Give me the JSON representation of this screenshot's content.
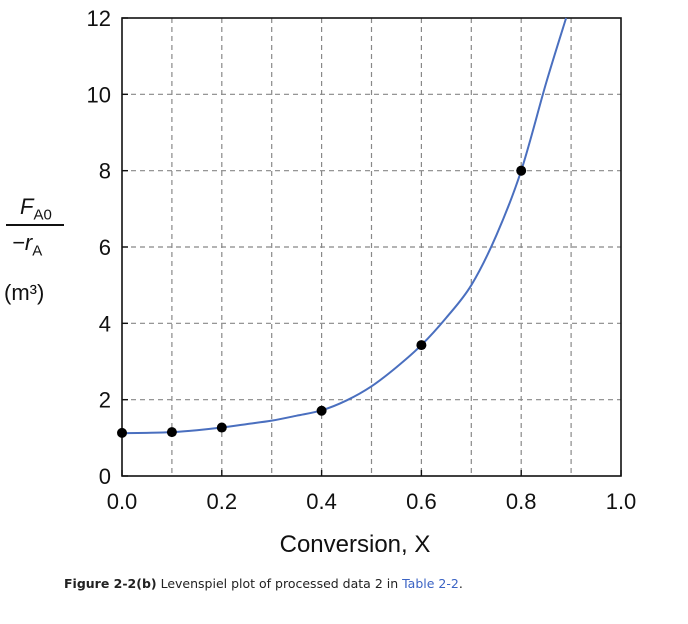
{
  "chart_data": {
    "type": "line",
    "xlabel": "Conversion, X",
    "ylabel": {
      "numerator": "F",
      "numerator_sub": "A0",
      "denominator": "−r",
      "denominator_sub": "A",
      "unit": "(m³)"
    },
    "xlim": [
      0,
      1.0
    ],
    "ylim": [
      0,
      12
    ],
    "x_ticks": [
      "0.0",
      "0.2",
      "0.4",
      "0.6",
      "0.8",
      "1.0"
    ],
    "y_ticks": [
      "0",
      "2",
      "4",
      "6",
      "8",
      "10",
      "12"
    ],
    "grid": true,
    "grid_style": "dashed",
    "points": {
      "x": [
        0.0,
        0.1,
        0.2,
        0.4,
        0.6,
        0.8
      ],
      "y": [
        1.13,
        1.15,
        1.27,
        1.71,
        3.43,
        8.0
      ]
    },
    "curve": {
      "x": [
        0.0,
        0.05,
        0.1,
        0.15,
        0.2,
        0.25,
        0.3,
        0.35,
        0.4,
        0.45,
        0.5,
        0.55,
        0.6,
        0.65,
        0.7,
        0.75,
        0.8,
        0.85,
        0.89
      ],
      "y": [
        1.12,
        1.13,
        1.15,
        1.2,
        1.27,
        1.36,
        1.45,
        1.58,
        1.72,
        1.98,
        2.35,
        2.85,
        3.43,
        4.15,
        5.0,
        6.3,
        8.0,
        10.3,
        12.0
      ]
    },
    "colors": {
      "curve": "#4a6fbf",
      "points": "#000000",
      "grid": "#888888"
    }
  },
  "caption": {
    "label": "Figure 2-2(b)",
    "text": " Levenspiel plot of processed data 2 in ",
    "link": "Table 2-2",
    "end": "."
  }
}
